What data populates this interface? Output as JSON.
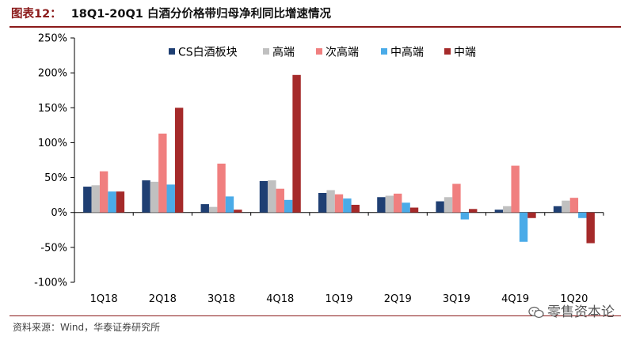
{
  "header": {
    "figure_no": "图表12：",
    "title": "18Q1-20Q1 白酒分价格带归母净利同比增速情况"
  },
  "footer": {
    "source": "资料来源：Wind，华泰证券研究所",
    "watermark": "零售资本论"
  },
  "chart_data": {
    "type": "bar",
    "title": "18Q1-20Q1 白酒分价格带归母净利同比增速情况",
    "xlabel": "",
    "ylabel": "",
    "ylim": [
      -100,
      250
    ],
    "yticks": [
      -100,
      -50,
      0,
      50,
      100,
      150,
      200,
      250
    ],
    "ytick_labels": [
      "-100%",
      "-50%",
      "0%",
      "50%",
      "100%",
      "150%",
      "200%",
      "250%"
    ],
    "categories": [
      "1Q18",
      "2Q18",
      "3Q18",
      "4Q18",
      "1Q19",
      "2Q19",
      "3Q19",
      "4Q19",
      "1Q20"
    ],
    "legend_position": "top-center",
    "series": [
      {
        "name": "CS白酒板块",
        "color": "#1f3f73",
        "values": [
          37,
          46,
          12,
          45,
          28,
          22,
          16,
          4,
          9
        ]
      },
      {
        "name": "高端",
        "color": "#c0c0c0",
        "values": [
          39,
          44,
          8,
          46,
          32,
          24,
          22,
          9,
          17
        ]
      },
      {
        "name": "次高端",
        "color": "#f07f7f",
        "values": [
          59,
          113,
          70,
          34,
          26,
          27,
          41,
          67,
          21
        ]
      },
      {
        "name": "中高端",
        "color": "#4aabe8",
        "values": [
          30,
          40,
          23,
          18,
          20,
          14,
          -10,
          -42,
          -8
        ]
      },
      {
        "name": "中端",
        "color": "#a52a2a",
        "values": [
          30,
          150,
          4,
          197,
          11,
          7,
          5,
          -8,
          -44
        ]
      }
    ]
  }
}
